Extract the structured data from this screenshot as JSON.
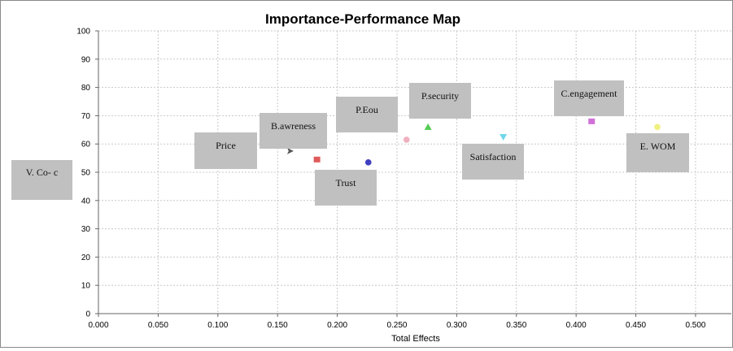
{
  "chart_data": {
    "type": "scatter",
    "title": "Importance-Performance Map",
    "xlabel": "Total Effects",
    "ylabel": "V. Co- c",
    "xlim": [
      0.0,
      0.53
    ],
    "ylim": [
      0,
      100
    ],
    "x_ticks": [
      "0.000",
      "0.050",
      "0.100",
      "0.150",
      "0.200",
      "0.250",
      "0.300",
      "0.350",
      "0.400",
      "0.450",
      "0.500"
    ],
    "y_ticks": [
      "0",
      "10",
      "20",
      "30",
      "40",
      "50",
      "60",
      "70",
      "80",
      "90",
      "100"
    ],
    "grid": true,
    "points": [
      {
        "label": "Price",
        "x": 0.16,
        "y": 57.5,
        "color": "#555555",
        "marker": "arrow"
      },
      {
        "label": "B.awreness",
        "x": 0.183,
        "y": 54.5,
        "color": "#e05a5a",
        "marker": "square"
      },
      {
        "label": "Trust",
        "x": 0.226,
        "y": 53.5,
        "color": "#3f3fc0",
        "marker": "circle"
      },
      {
        "label": "P.Eou",
        "x": 0.258,
        "y": 61.5,
        "color": "#f0b0c0",
        "marker": "circle"
      },
      {
        "label": "P.security",
        "x": 0.276,
        "y": 66.0,
        "color": "#55cc55",
        "marker": "triangle"
      },
      {
        "label": "Satisfaction",
        "x": 0.339,
        "y": 62.5,
        "color": "#70d8e8",
        "marker": "triangle-down"
      },
      {
        "label": "C.engagement",
        "x": 0.413,
        "y": 68.0,
        "color": "#d070d8",
        "marker": "square"
      },
      {
        "label": "E. WOM",
        "x": 0.468,
        "y": 66.0,
        "color": "#f0f080",
        "marker": "circle"
      }
    ]
  }
}
